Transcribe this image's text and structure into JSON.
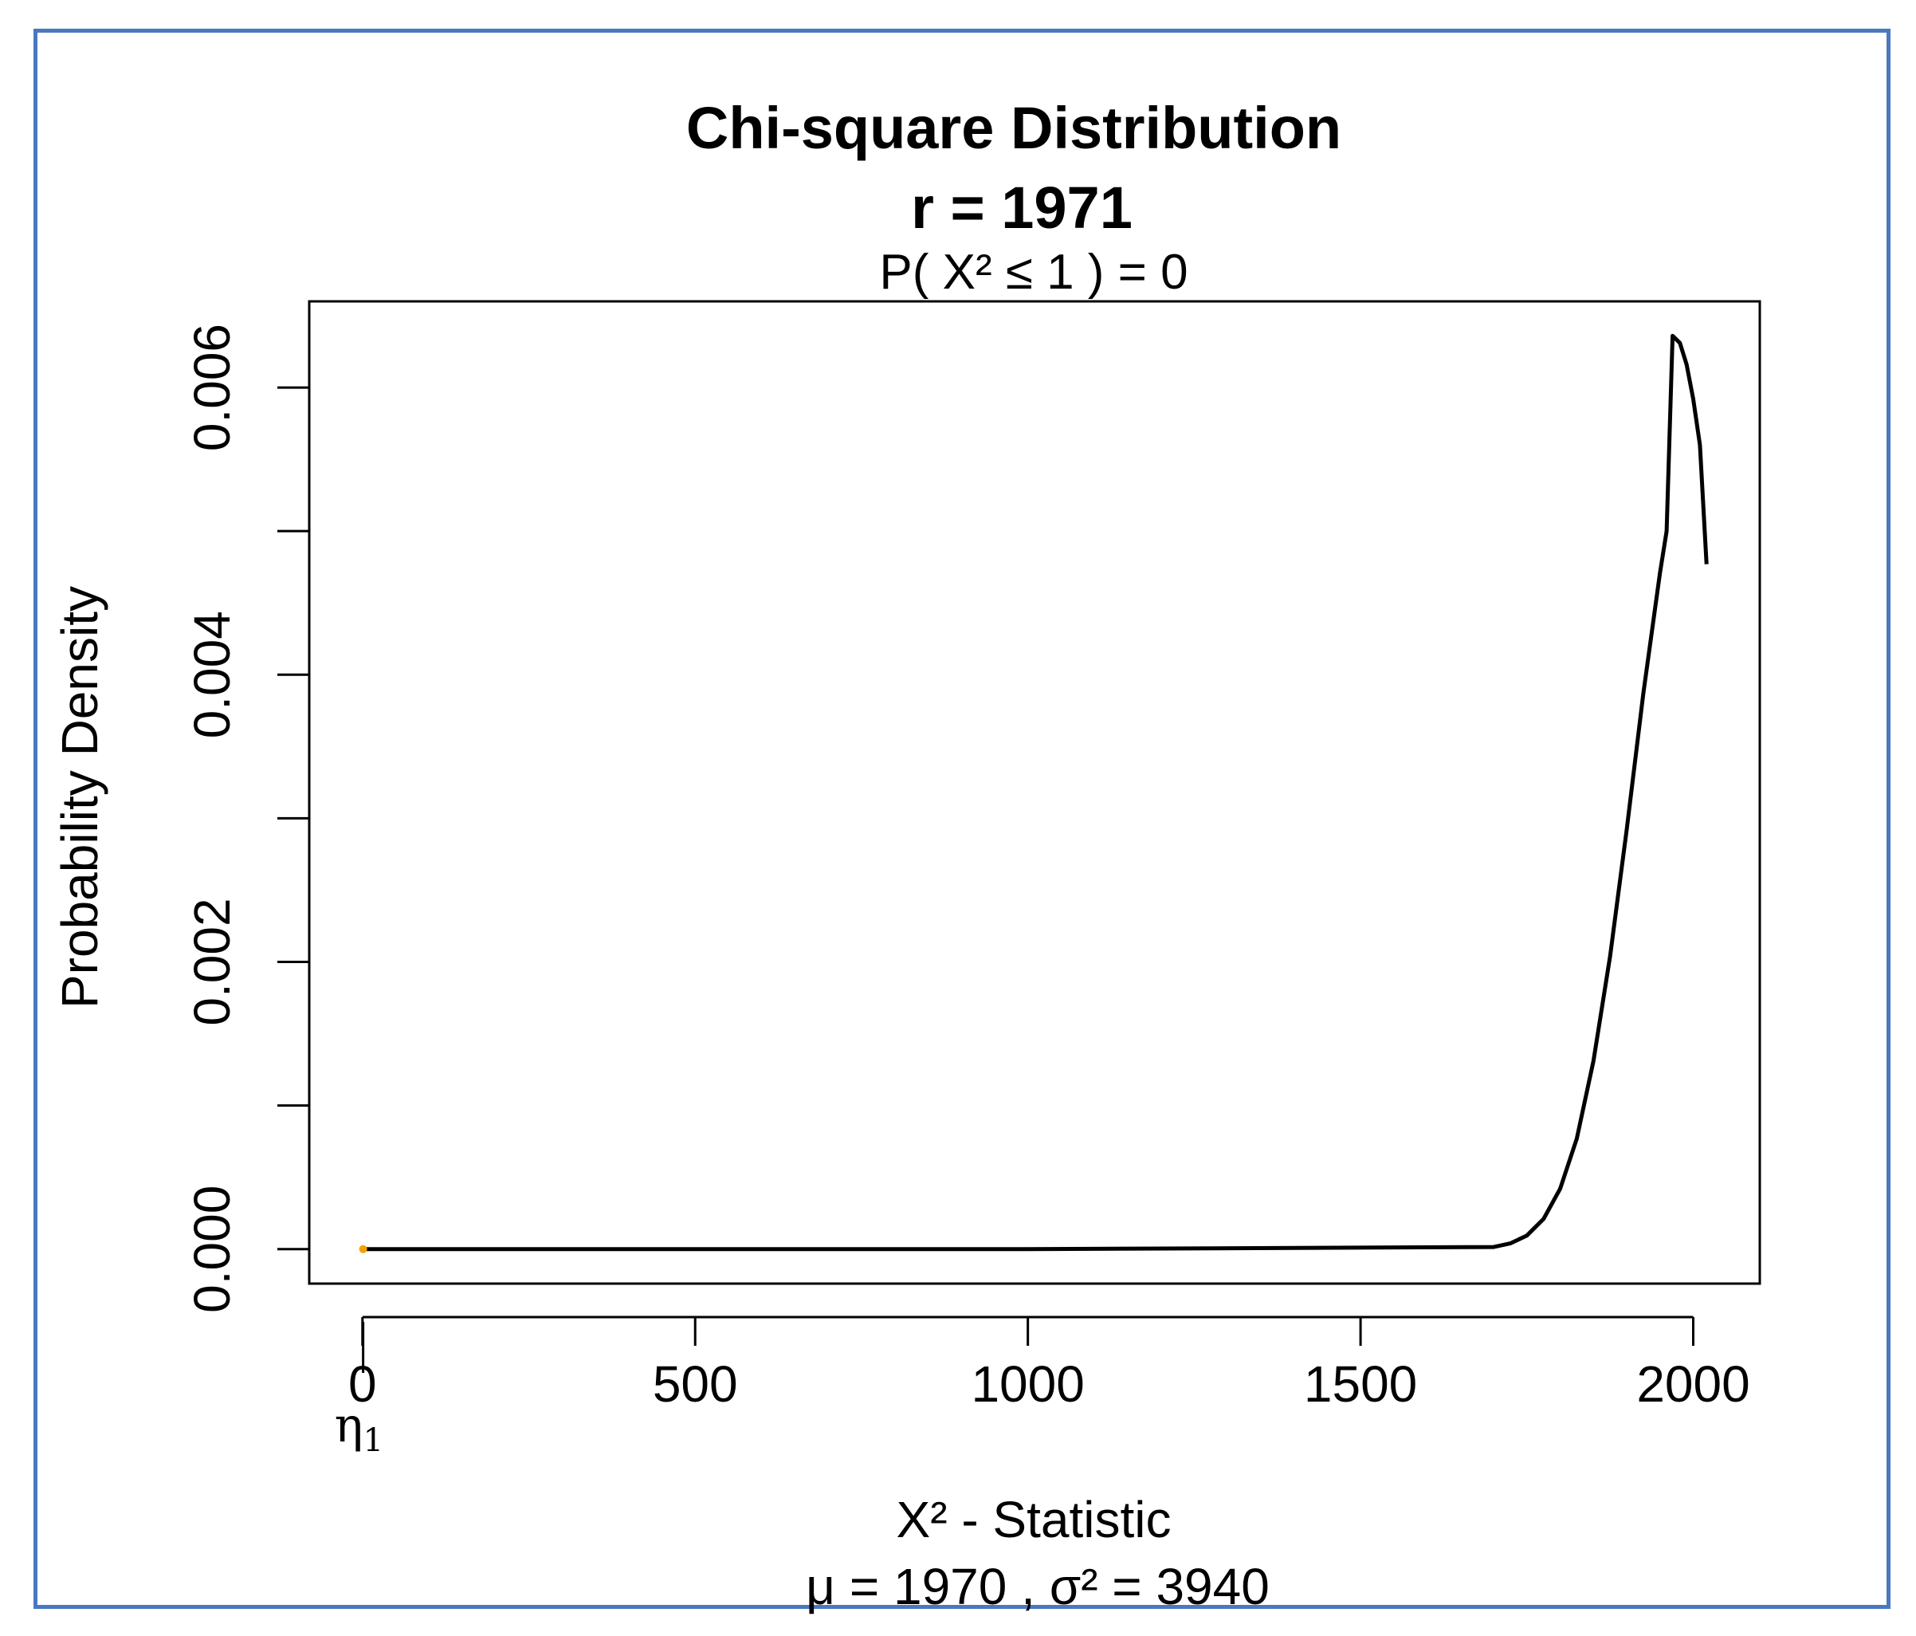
{
  "chart_data": {
    "type": "line",
    "title": "Chi-square Distribution",
    "title_line2": "r  =  1971",
    "subtitle": "P(  X²  ≤  1 ) =  0",
    "xlabel": "X² - Statistic",
    "xlabel_line2": "μ =  1970 , σ² =  3940",
    "ylabel": "Probability Density",
    "xlim": [
      -80,
      2100
    ],
    "ylim": [
      -0.00024,
      0.0066
    ],
    "x_ticks": [
      0,
      500,
      1000,
      1500,
      2000
    ],
    "x_tick_labels": [
      "0",
      "500",
      "1000",
      "1500",
      "2000"
    ],
    "y_ticks": [
      0,
      0.001,
      0.002,
      0.003,
      0.004,
      0.005,
      0.006
    ],
    "y_tick_labels": [
      "0.000",
      "",
      "0.002",
      "",
      "0.004",
      "",
      "0.006"
    ],
    "marker_label": "η1",
    "marker_x": 1,
    "marker_color": "#f5a000",
    "curve_color": "#000000",
    "border_color": "#4a78c0",
    "series": [
      {
        "distribution": "chi-square",
        "df": 1971,
        "x": [
          0,
          1000,
          1700,
          1725,
          1750,
          1775,
          1800,
          1825,
          1850,
          1875,
          1900,
          1925,
          1950,
          1960,
          1969,
          1980,
          1990,
          2000,
          2010,
          2020
        ],
        "y": [
          0,
          0,
          1.5e-05,
          4e-05,
          9.5e-05,
          0.00021,
          0.00042,
          0.00077,
          0.00131,
          0.00204,
          0.00292,
          0.00387,
          0.00471,
          0.005,
          0.00636,
          0.00631,
          0.00616,
          0.00592,
          0.0056,
          0.00477
        ]
      }
    ]
  }
}
